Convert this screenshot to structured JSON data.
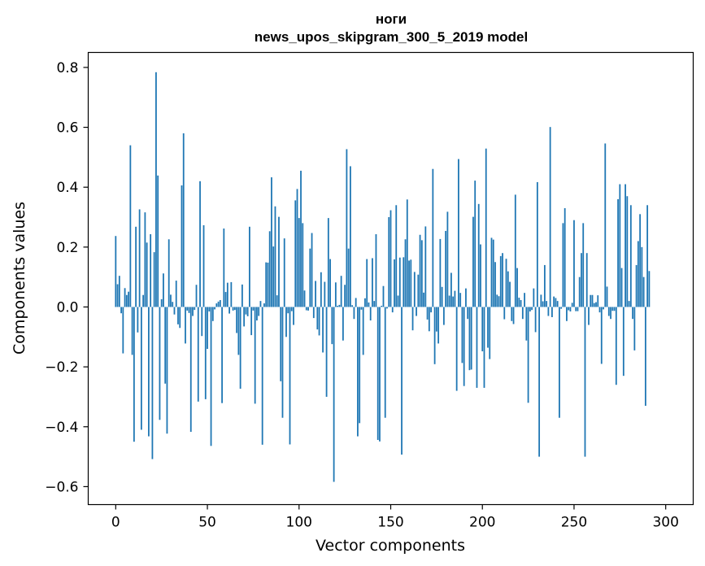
{
  "chart_data": {
    "type": "bar",
    "title": "ноги",
    "subtitle": "news_upos_skipgram_300_5_2019 model",
    "xlabel": "Vector components",
    "ylabel": "Components values",
    "xlim": [
      -15,
      315
    ],
    "ylim": [
      -0.66,
      0.85
    ],
    "xticks": [
      0,
      50,
      100,
      150,
      200,
      250,
      300
    ],
    "yticks": [
      -0.6,
      -0.4,
      -0.2,
      0.0,
      0.2,
      0.4,
      0.6,
      0.8
    ],
    "xtick_labels": [
      "0",
      "50",
      "100",
      "150",
      "200",
      "250",
      "300"
    ],
    "ytick_labels": [
      "−0.6",
      "−0.4",
      "−0.2",
      "0.0",
      "0.2",
      "0.4",
      "0.6",
      "0.8"
    ],
    "bar_color": "#1f77b4",
    "grid": false,
    "values": [
      0.237,
      0.076,
      0.104,
      -0.021,
      -0.155,
      0.063,
      0.04,
      0.051,
      0.54,
      -0.16,
      -0.45,
      0.268,
      -0.085,
      0.326,
      -0.41,
      0.04,
      0.316,
      0.215,
      -0.432,
      0.243,
      -0.508,
      0.183,
      0.784,
      0.439,
      -0.377,
      0.026,
      0.112,
      -0.256,
      -0.423,
      0.226,
      0.041,
      0.017,
      -0.025,
      0.088,
      -0.058,
      -0.07,
      0.406,
      0.58,
      -0.122,
      -0.012,
      -0.02,
      -0.417,
      -0.03,
      -0.01,
      0.074,
      -0.316,
      0.42,
      -0.097,
      0.273,
      -0.308,
      -0.14,
      -0.015,
      -0.464,
      -0.047,
      -0.008,
      0.012,
      0.018,
      0.023,
      -0.321,
      0.262,
      0.05,
      0.081,
      -0.022,
      0.083,
      -0.012,
      -0.01,
      -0.087,
      -0.16,
      -0.273,
      0.075,
      -0.065,
      -0.025,
      -0.031,
      0.268,
      -0.094,
      -0.012,
      -0.323,
      -0.045,
      -0.03,
      0.02,
      -0.46,
      0.012,
      0.149,
      0.148,
      0.253,
      0.433,
      0.202,
      0.336,
      0.039,
      0.301,
      -0.248,
      -0.37,
      0.229,
      -0.1,
      -0.021,
      -0.459,
      -0.014,
      -0.06,
      0.356,
      0.394,
      0.297,
      0.455,
      0.28,
      0.055,
      -0.011,
      -0.012,
      0.195,
      0.247,
      -0.037,
      0.087,
      -0.075,
      -0.095,
      0.116,
      -0.152,
      0.084,
      -0.3,
      0.297,
      0.16,
      -0.124,
      -0.584,
      0.082,
      0.004,
      0.007,
      0.104,
      -0.112,
      0.074,
      0.527,
      0.195,
      0.47,
      0.006,
      -0.04,
      0.03,
      -0.432,
      -0.388,
      -0.009,
      -0.16,
      0.029,
      0.16,
      0.015,
      -0.045,
      0.163,
      0.02,
      0.243,
      -0.444,
      -0.449,
      0.004,
      0.07,
      -0.37,
      -0.005,
      0.3,
      0.323,
      -0.018,
      0.159,
      0.34,
      0.038,
      0.165,
      -0.493,
      0.166,
      0.226,
      0.359,
      0.155,
      0.158,
      -0.078,
      0.117,
      -0.03,
      0.108,
      0.241,
      0.223,
      0.048,
      0.269,
      -0.042,
      -0.081,
      -0.018,
      0.461,
      -0.191,
      -0.082,
      -0.122,
      0.227,
      0.067,
      -0.06,
      0.254,
      0.318,
      0.038,
      0.114,
      0.035,
      0.054,
      -0.28,
      0.494,
      0.047,
      -0.187,
      -0.264,
      0.062,
      -0.04,
      -0.211,
      -0.209,
      0.301,
      0.422,
      -0.27,
      0.344,
      0.209,
      -0.148,
      -0.27,
      0.529,
      -0.136,
      -0.174,
      0.231,
      0.225,
      0.15,
      0.041,
      0.036,
      0.17,
      0.18,
      -0.041,
      0.161,
      0.119,
      0.084,
      -0.047,
      -0.057,
      0.375,
      0.13,
      0.031,
      0.023,
      -0.04,
      0.047,
      -0.112,
      -0.32,
      -0.015,
      -0.01,
      0.062,
      -0.084,
      0.417,
      -0.5,
      0.041,
      0.019,
      0.14,
      0.02,
      -0.03,
      0.601,
      -0.034,
      0.035,
      0.03,
      0.02,
      -0.37,
      -0.006,
      0.28,
      0.33,
      -0.047,
      -0.011,
      -0.015,
      0.014,
      0.29,
      -0.014,
      -0.014,
      0.1,
      0.18,
      0.28,
      -0.5,
      0.18,
      -0.06,
      0.04,
      0.04,
      0.013,
      0.016,
      0.039,
      -0.018,
      -0.19,
      -0.008,
      0.546,
      0.068,
      -0.03,
      -0.04,
      -0.013,
      -0.013,
      -0.26,
      0.36,
      0.41,
      0.13,
      -0.23,
      0.41,
      0.37,
      0.02,
      0.34,
      -0.04,
      -0.145,
      0.14,
      0.22,
      0.31,
      0.2,
      0.1,
      -0.33,
      0.34,
      0.12
    ]
  }
}
